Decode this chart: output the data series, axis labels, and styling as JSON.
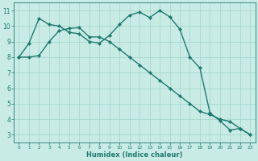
{
  "xlabel": "Humidex (Indice chaleur)",
  "background_color": "#c8ebe5",
  "grid_color": "#a0d4cc",
  "line_color": "#1e7a6e",
  "marker": "D",
  "markersize": 2.2,
  "linewidth": 1.0,
  "line1_x": [
    0,
    1,
    2,
    3,
    4,
    5,
    6,
    7,
    8,
    9,
    10,
    11,
    12,
    13,
    14,
    15,
    16,
    17,
    18,
    19,
    20,
    21,
    22,
    23
  ],
  "line1_y": [
    8.0,
    8.9,
    10.5,
    10.1,
    10.0,
    9.6,
    9.5,
    9.0,
    8.9,
    9.4,
    10.1,
    10.7,
    10.9,
    10.55,
    11.0,
    10.6,
    9.8,
    8.0,
    7.3,
    4.4,
    3.9,
    3.3,
    3.4,
    3.0
  ],
  "line2_x": [
    0,
    1,
    2,
    3,
    4,
    5,
    6,
    7,
    8,
    9,
    10,
    11,
    12,
    13,
    14,
    15,
    16,
    17,
    18,
    19,
    20,
    21,
    22,
    23
  ],
  "line2_y": [
    8.0,
    8.0,
    8.1,
    9.0,
    9.7,
    9.85,
    9.9,
    9.3,
    9.3,
    9.0,
    8.5,
    8.0,
    7.5,
    7.0,
    6.5,
    6.0,
    5.5,
    5.0,
    4.5,
    4.3,
    4.0,
    3.85,
    3.4,
    3.0
  ],
  "xlim": [
    -0.5,
    23.5
  ],
  "ylim": [
    2.5,
    11.5
  ],
  "yticks": [
    3,
    4,
    5,
    6,
    7,
    8,
    9,
    10,
    11
  ],
  "xticks": [
    0,
    1,
    2,
    3,
    4,
    5,
    6,
    7,
    8,
    9,
    10,
    11,
    12,
    13,
    14,
    15,
    16,
    17,
    18,
    19,
    20,
    21,
    22,
    23
  ],
  "xlabel_fontsize": 6.0,
  "tick_fontsize_x": 4.2,
  "tick_fontsize_y": 5.5
}
